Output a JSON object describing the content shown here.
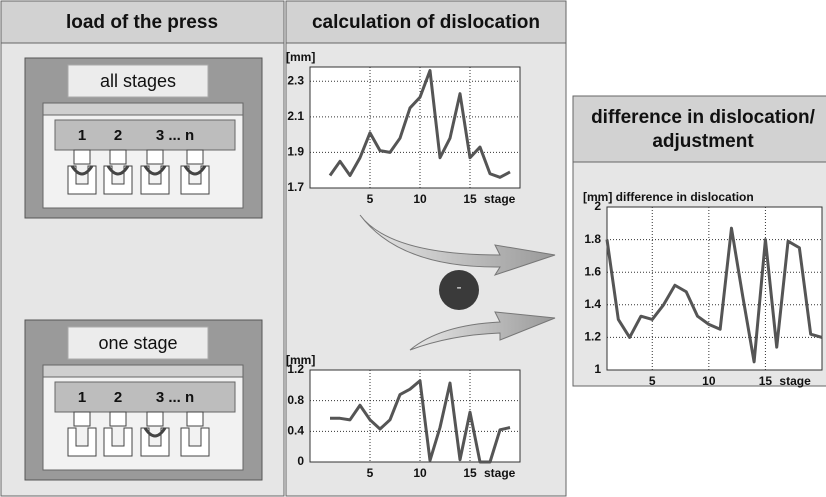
{
  "panels": [
    {
      "title_lines": [
        "load of the press"
      ]
    },
    {
      "title_lines": [
        "calculation of dislocation"
      ]
    },
    {
      "title_lines": [
        "difference in dislocation/",
        "adjustment"
      ]
    }
  ],
  "presses": [
    {
      "label": "all stages",
      "stages": [
        "1",
        "2",
        "3 ... n"
      ]
    },
    {
      "label": "one stage",
      "stages": [
        "1",
        "2",
        "3 ... n"
      ]
    }
  ],
  "operator": "-",
  "chart_data": [
    {
      "type": "line",
      "ylabel": "[mm]",
      "xlabel": "stage",
      "x": [
        1,
        2,
        3,
        4,
        5,
        6,
        7,
        8,
        9,
        10,
        11,
        12,
        13,
        14,
        15,
        16,
        17,
        18,
        19
      ],
      "values": [
        1.77,
        1.85,
        1.77,
        1.87,
        2.01,
        1.91,
        1.9,
        1.98,
        2.15,
        2.21,
        2.36,
        1.87,
        1.98,
        2.23,
        1.87,
        1.93,
        1.78,
        1.76,
        1.79
      ],
      "color": "#555555",
      "xlim": [
        -1,
        20
      ],
      "ylim": [
        1.7,
        2.38
      ],
      "xticks": [
        5,
        10,
        15
      ],
      "yticks": [
        1.7,
        1.9,
        2.1,
        2.3
      ],
      "grid": true
    },
    {
      "type": "line",
      "ylabel": "[mm]",
      "xlabel": "stage",
      "x": [
        1,
        2,
        3,
        4,
        5,
        6,
        7,
        8,
        9,
        10,
        11,
        12,
        13,
        14,
        15,
        16,
        17,
        18,
        19
      ],
      "values": [
        0.57,
        0.57,
        0.55,
        0.74,
        0.55,
        0.43,
        0.55,
        0.88,
        0.95,
        1.06,
        0.02,
        0.45,
        1.03,
        0.03,
        0.65,
        0.0,
        0.0,
        0.42,
        0.45
      ],
      "color": "#555555",
      "xlim": [
        -1,
        20
      ],
      "ylim": [
        0,
        1.2
      ],
      "xticks": [
        5,
        10,
        15
      ],
      "yticks": [
        0,
        0.4,
        0.8,
        1.2
      ],
      "grid": true
    },
    {
      "type": "line",
      "ylabel": "[mm] difference in dislocation",
      "xlabel": "stage",
      "x": [
        1,
        2,
        3,
        4,
        5,
        6,
        7,
        8,
        9,
        10,
        11,
        12,
        13,
        14,
        15,
        16,
        17,
        18,
        19,
        20
      ],
      "values": [
        1.8,
        1.31,
        1.2,
        1.33,
        1.31,
        1.4,
        1.52,
        1.48,
        1.33,
        1.28,
        1.25,
        1.87,
        1.45,
        1.05,
        1.8,
        1.14,
        1.79,
        1.75,
        1.22,
        1.2
      ],
      "color": "#555555",
      "xlim": [
        1,
        20
      ],
      "ylim": [
        1,
        2
      ],
      "xticks": [
        5,
        10,
        15
      ],
      "yticks": [
        1,
        1.2,
        1.4,
        1.6,
        1.8,
        2
      ],
      "grid": true
    }
  ]
}
